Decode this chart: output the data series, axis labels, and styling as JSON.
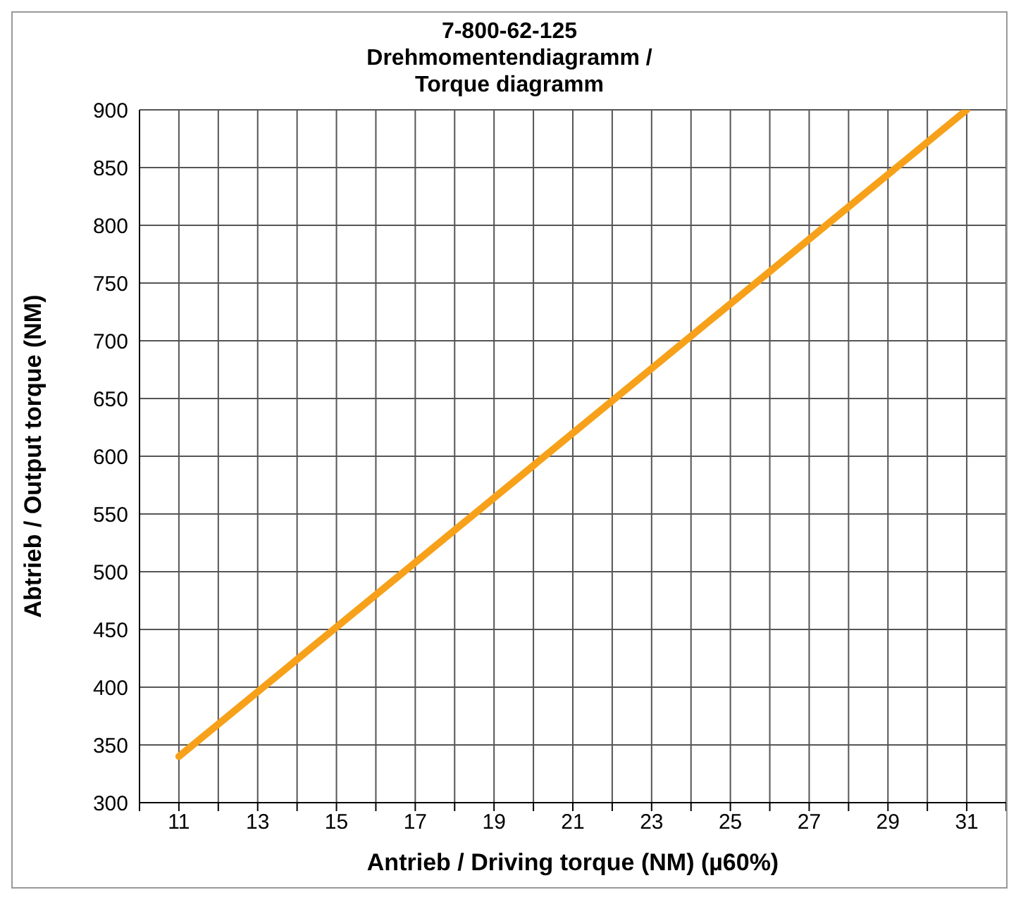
{
  "chart_data": {
    "type": "line",
    "title": "7-800-62-125\nDrehmomentendiagramm /\nTorque diagramm",
    "xlabel": "Antrieb / Driving torque (NM) (µ60%)",
    "ylabel": "Abtrieb / Output torque  (NM)",
    "x": [
      11,
      31
    ],
    "series": [
      {
        "color": "#f7a11a",
        "values": [
          340,
          900
        ]
      }
    ],
    "xlim": [
      10,
      32
    ],
    "xticks": [
      {
        "value": 10,
        "label": null
      },
      11,
      {
        "value": 12,
        "label": null
      },
      13,
      {
        "value": 14,
        "label": null
      },
      15,
      {
        "value": 16,
        "label": null
      },
      17,
      {
        "value": 18,
        "label": null
      },
      19,
      {
        "value": 20,
        "label": null
      },
      21,
      {
        "value": 22,
        "label": null
      },
      23,
      {
        "value": 24,
        "label": null
      },
      25,
      {
        "value": 26,
        "label": null
      },
      27,
      {
        "value": 28,
        "label": null
      },
      29,
      {
        "value": 30,
        "label": null
      },
      31,
      {
        "value": 32,
        "label": null
      }
    ],
    "ylim": [
      300,
      900
    ],
    "yticks": [
      300,
      350,
      400,
      450,
      500,
      550,
      600,
      650,
      700,
      750,
      800,
      850,
      900
    ],
    "grid": true,
    "marker": "none",
    "line_style": "solid"
  }
}
